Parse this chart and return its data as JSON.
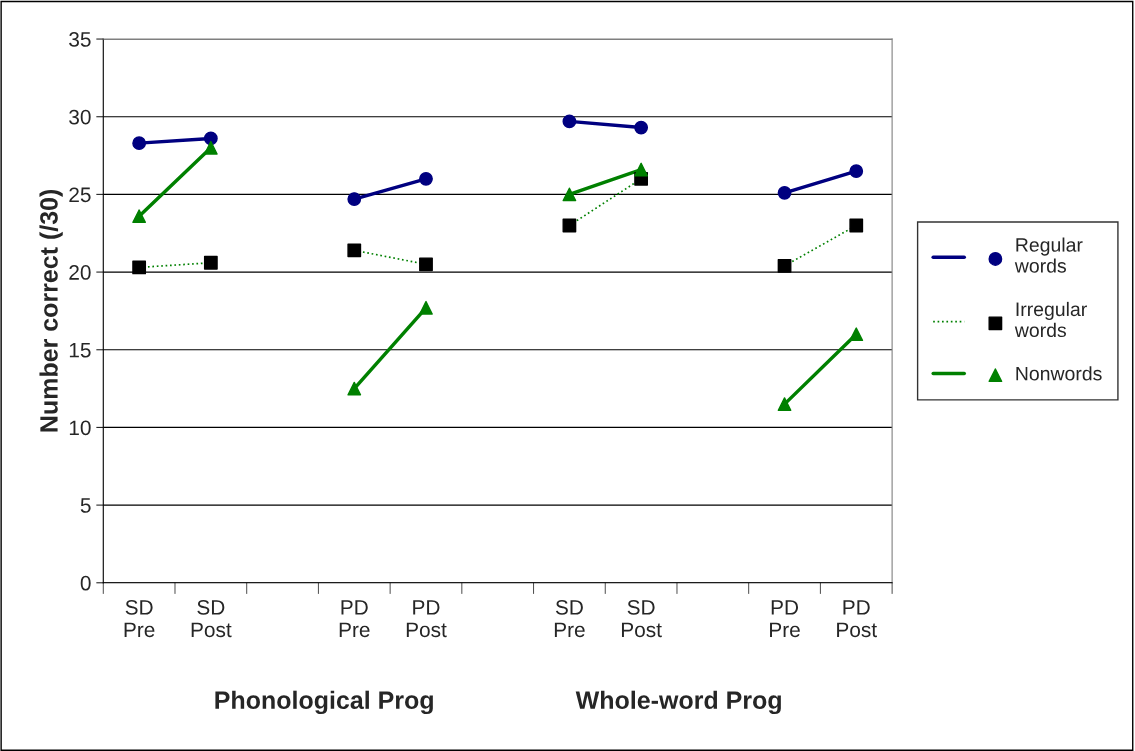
{
  "chart_data": {
    "type": "line",
    "ylabel": "Number correct (/30)",
    "categories": [
      "SD\nPre",
      "SD\nPost",
      null,
      "PD\nPre",
      "PD\nPost",
      null,
      "SD\nPre",
      "SD\nPost",
      null,
      "PD\nPre",
      "PD\nPost"
    ],
    "series": [
      {
        "name": "Regular\nwords",
        "color": "#000080",
        "marker": "circle",
        "line_style": "solid",
        "values": [
          28.3,
          28.6,
          null,
          24.7,
          26.0,
          null,
          29.7,
          29.3,
          null,
          25.1,
          26.5
        ]
      },
      {
        "name": "Irregular\nwords",
        "color": "#008000",
        "colors": [
          "#000000",
          "#000000",
          "#000000",
          "#000000",
          "#000000",
          "#000000",
          "#000000",
          "#000000",
          "#000000",
          "#000000",
          "#000000"
        ],
        "marker": "square",
        "line_style": "dotted",
        "values": [
          20.3,
          20.6,
          null,
          21.4,
          20.5,
          null,
          23.0,
          26.0,
          null,
          20.4,
          23.0
        ]
      },
      {
        "name": "Nonwords",
        "color": "#008000",
        "marker": "triangle",
        "line_style": "solid",
        "values": [
          23.6,
          28.0,
          null,
          12.5,
          17.7,
          null,
          25.0,
          26.6,
          null,
          11.5,
          16.0
        ]
      }
    ],
    "ylim": [
      0,
      35
    ],
    "yticks": [
      0,
      5,
      10,
      15,
      20,
      25,
      30,
      35
    ],
    "grid": "y",
    "legend": "right",
    "annotations": [
      "Phonological Prog",
      "Whole-word Prog"
    ]
  }
}
